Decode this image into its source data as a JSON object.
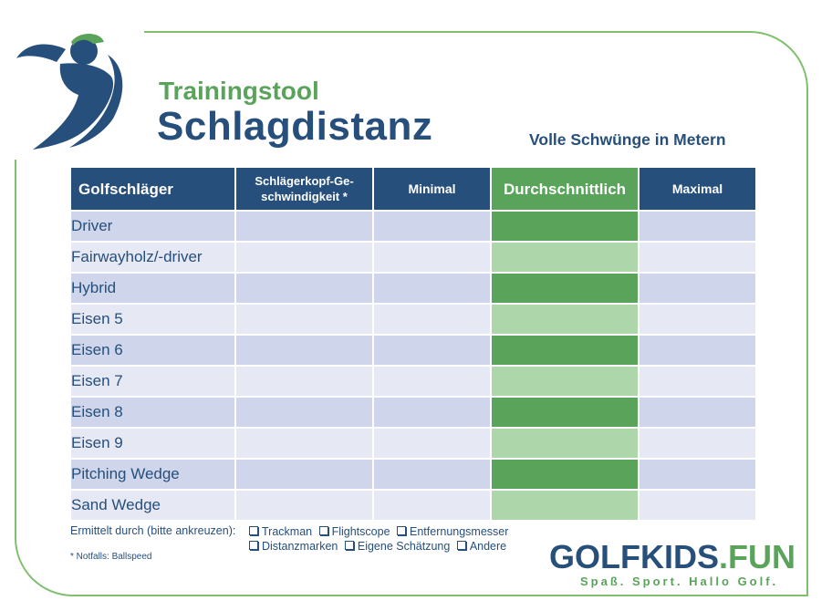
{
  "header": {
    "subtitle": "Trainingstool",
    "title": "Schlagdistanz",
    "unit_note": "Volle Schwünge in Metern"
  },
  "table": {
    "columns": [
      "Golfschläger",
      "Schlägerkopf-Ge-schwindigkeit *",
      "Minimal",
      "Durchschnittlich",
      "Maximal"
    ],
    "rows": [
      "Driver",
      "Fairwayholz/-driver",
      "Hybrid",
      "Eisen 5",
      "Eisen 6",
      "Eisen 7",
      "Eisen 8",
      "Eisen 9",
      "Pitching Wedge",
      "Sand Wedge"
    ]
  },
  "footer": {
    "method_label": "Ermittelt durch (bitte ankreuzen):",
    "options": [
      "Trackman",
      "Flightscope",
      "Entfernungsmesser",
      "Distanzmarken",
      "Eigene Schätzung",
      "Andere"
    ],
    "footnote": "* Notfalls: Ballspeed"
  },
  "brand": {
    "name_part1": "GOLFKIDS",
    "name_part2": ".FUN",
    "tagline": "Spaß. Sport. Hallo Golf."
  },
  "colors": {
    "navy": "#264f7c",
    "green": "#5aa35b",
    "light_green": "#aed6ab",
    "row_dark": "#cfd6ec",
    "row_light": "#e6e9f4"
  },
  "icons": {
    "logo": "golfer-logo-icon",
    "checkbox": "checkbox-icon"
  }
}
